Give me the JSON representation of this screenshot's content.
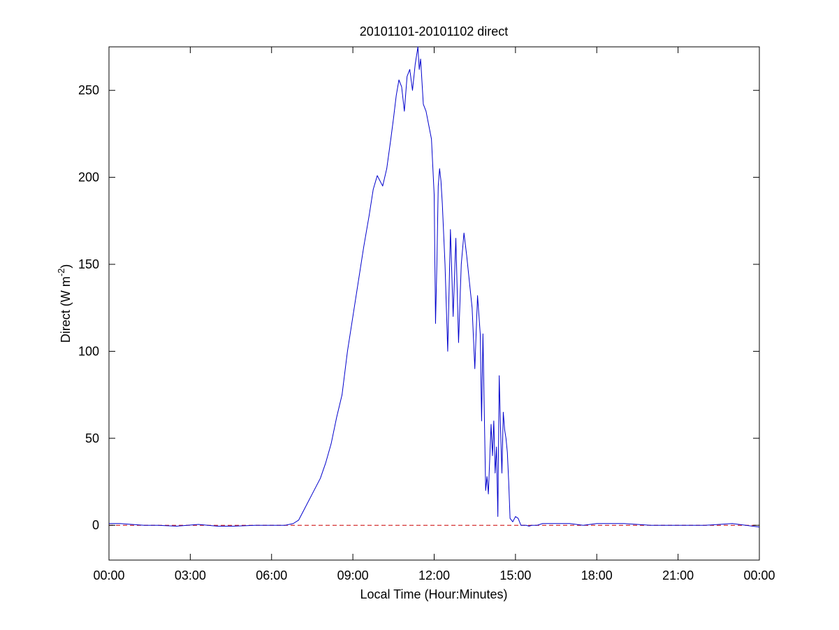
{
  "chart_data": {
    "type": "line",
    "title": "20101101-20101102 direct",
    "xlabel": "Local Time (Hour:Minutes)",
    "ylabel_main": "Direct (W m",
    "ylabel_sup": "-2",
    "ylabel_end": ")",
    "xlim": [
      0,
      24
    ],
    "ylim": [
      -20,
      275
    ],
    "grid": false,
    "x_ticks": [
      {
        "value": 0,
        "label": "00:00"
      },
      {
        "value": 3,
        "label": "03:00"
      },
      {
        "value": 6,
        "label": "06:00"
      },
      {
        "value": 9,
        "label": "09:00"
      },
      {
        "value": 12,
        "label": "12:00"
      },
      {
        "value": 15,
        "label": "15:00"
      },
      {
        "value": 18,
        "label": "18:00"
      },
      {
        "value": 21,
        "label": "21:00"
      },
      {
        "value": 24,
        "label": "00:00"
      }
    ],
    "y_ticks": [
      {
        "value": 0,
        "label": "0"
      },
      {
        "value": 50,
        "label": "50"
      },
      {
        "value": 100,
        "label": "100"
      },
      {
        "value": 150,
        "label": "150"
      },
      {
        "value": 200,
        "label": "200"
      },
      {
        "value": 250,
        "label": "250"
      }
    ],
    "series": [
      {
        "color": "#0000cc",
        "style": "solid",
        "x": [
          0.0,
          0.4,
          1.3,
          1.8,
          2.5,
          3.3,
          4.0,
          4.6,
          5.4,
          6.0,
          6.5,
          6.8,
          7.0,
          7.2,
          7.5,
          7.8,
          8.0,
          8.2,
          8.4,
          8.6,
          8.8,
          9.0,
          9.2,
          9.4,
          9.6,
          9.75,
          9.9,
          10.0,
          10.1,
          10.25,
          10.4,
          10.5,
          10.6,
          10.7,
          10.8,
          10.9,
          11.0,
          11.1,
          11.2,
          11.3,
          11.4,
          11.45,
          11.5,
          11.6,
          11.7,
          11.8,
          11.9,
          12.0,
          12.05,
          12.1,
          12.15,
          12.2,
          12.25,
          12.3,
          12.4,
          12.5,
          12.6,
          12.7,
          12.8,
          12.9,
          13.0,
          13.1,
          13.2,
          13.3,
          13.4,
          13.5,
          13.6,
          13.7,
          13.75,
          13.8,
          13.9,
          13.95,
          14.0,
          14.1,
          14.15,
          14.2,
          14.25,
          14.3,
          14.35,
          14.4,
          14.45,
          14.5,
          14.55,
          14.6,
          14.65,
          14.7,
          14.75,
          14.8,
          14.9,
          15.0,
          15.1,
          15.2,
          15.3,
          15.4,
          15.5,
          15.6,
          15.7,
          15.8,
          16.0,
          16.5,
          17.0,
          17.5,
          18.0,
          19.0,
          20.0,
          21.0,
          22.0,
          23.0,
          24.0
        ],
        "y": [
          1,
          1,
          0,
          0,
          -0.5,
          0.5,
          -0.5,
          -0.5,
          0,
          0,
          0,
          1,
          3,
          9,
          18,
          27,
          36,
          47,
          62,
          75,
          100,
          120,
          140,
          160,
          178,
          193,
          201,
          198,
          195,
          205,
          222,
          234,
          247,
          256,
          252,
          238,
          258,
          262,
          250,
          265,
          275,
          262,
          268,
          242,
          238,
          230,
          222,
          190,
          116,
          150,
          195,
          205,
          198,
          185,
          150,
          100,
          170,
          120,
          165,
          105,
          150,
          168,
          155,
          140,
          125,
          90,
          132,
          110,
          60,
          110,
          20,
          28,
          18,
          58,
          40,
          60,
          30,
          45,
          5,
          86,
          55,
          30,
          65,
          55,
          50,
          42,
          25,
          4,
          2,
          5,
          4,
          0,
          0,
          0,
          -0.5,
          0,
          0,
          0,
          1,
          1,
          1,
          0,
          1,
          1,
          0,
          0,
          0,
          1,
          -1
        ]
      },
      {
        "color": "#cc0000",
        "style": "dashed",
        "x": [
          0,
          24
        ],
        "y": [
          0,
          0
        ]
      }
    ]
  }
}
